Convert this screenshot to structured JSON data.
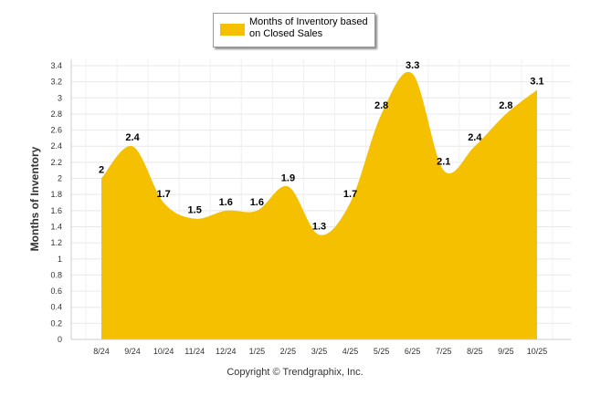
{
  "chart_data": {
    "type": "area",
    "categories": [
      "8/24",
      "9/24",
      "10/24",
      "11/24",
      "12/24",
      "1/25",
      "2/25",
      "3/25",
      "4/25",
      "5/25",
      "6/25",
      "7/25",
      "8/25",
      "9/25",
      "10/25"
    ],
    "series": [
      {
        "name": "Months of Inventory based on Closed Sales",
        "values": [
          2,
          2.4,
          1.7,
          1.5,
          1.6,
          1.6,
          1.9,
          1.3,
          1.7,
          2.8,
          3.3,
          2.1,
          2.4,
          2.8,
          3.1
        ]
      }
    ],
    "data_labels": [
      "2",
      "2.4",
      "1.7",
      "1.5",
      "1.6",
      "1.6",
      "1.9",
      "1.3",
      "1.7",
      "2.8",
      "3.3",
      "2.1",
      "2.4",
      "2.8",
      "3.1"
    ],
    "ylabel": "Months of Inventory",
    "xlabel": "",
    "ylim": [
      0,
      3.4
    ],
    "yticks": [
      "0",
      "0.2",
      "0.4",
      "0.6",
      "0.8",
      "1",
      "1.2",
      "1.4",
      "1.6",
      "1.8",
      "2",
      "2.2",
      "2.4",
      "2.6",
      "2.8",
      "3",
      "3.2",
      "3.4"
    ],
    "ytick_values": [
      0,
      0.2,
      0.4,
      0.6,
      0.8,
      1,
      1.2,
      1.4,
      1.6,
      1.8,
      2,
      2.2,
      2.4,
      2.6,
      2.8,
      3,
      3.2,
      3.4
    ],
    "grid": true,
    "legend_position": "top-center",
    "colors": {
      "fill": "#F5C000",
      "grid": "#e8e8e8",
      "axis": "#cccccc"
    }
  },
  "legend": {
    "label": "Months of Inventory based on Closed Sales"
  },
  "footer": {
    "copyright": "Copyright © Trendgraphix, Inc."
  }
}
